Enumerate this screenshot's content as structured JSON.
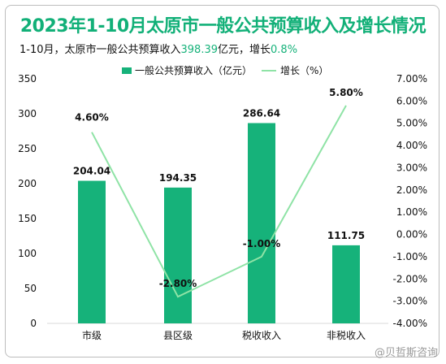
{
  "chart_data": {
    "type": "bar+line",
    "title": "2023年1-10月太原市一般公共预算收入及增长情况",
    "subtitle": {
      "prefix": "1-10月，太原市一般公共预算收入",
      "total": "398.39",
      "mid": "亿元，增长",
      "growth": "0.8%"
    },
    "categories": [
      "市级",
      "县区级",
      "税收收入",
      "非税收入"
    ],
    "series": [
      {
        "name": "一般公共预算收入（亿元）",
        "type": "bar",
        "axis": "left",
        "values": [
          204.04,
          194.35,
          286.64,
          111.75
        ],
        "labels": [
          "204.04",
          "194.35",
          "286.64",
          "111.75"
        ]
      },
      {
        "name": "增长（%）",
        "type": "line",
        "axis": "right",
        "values": [
          4.6,
          -2.8,
          -1.0,
          5.8
        ],
        "labels": [
          "4.60%",
          "-2.80%",
          "-1.00%",
          "5.80%"
        ]
      }
    ],
    "y_left": {
      "min": 0,
      "max": 350,
      "step": 50,
      "ticks": [
        "0",
        "50",
        "100",
        "150",
        "200",
        "250",
        "300",
        "350"
      ]
    },
    "y_right": {
      "min": -4,
      "max": 7,
      "step": 1,
      "ticks": [
        "-4.00%",
        "-3.00%",
        "-2.00%",
        "-1.00%",
        "0.00%",
        "1.00%",
        "2.00%",
        "3.00%",
        "4.00%",
        "5.00%",
        "6.00%",
        "7.00%"
      ]
    },
    "legend_position": "top-center",
    "grid": false,
    "colors": {
      "bar": "#16b27a",
      "line": "#8fe3a6",
      "title": "#12b078",
      "highlight": "#16b27a"
    }
  },
  "watermark": "@贝哲斯咨询"
}
